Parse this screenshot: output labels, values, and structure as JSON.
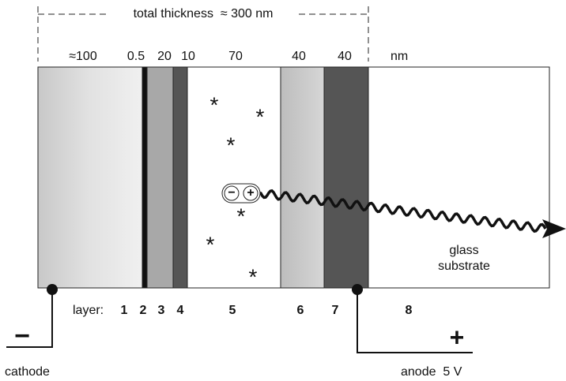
{
  "header": {
    "total_thickness": "total thickness  ≈ 300 nm"
  },
  "layers": [
    {
      "number": "1",
      "thickness": "≈100"
    },
    {
      "number": "2",
      "thickness": "0.5"
    },
    {
      "number": "3",
      "thickness": "20"
    },
    {
      "number": "4",
      "thickness": "10"
    },
    {
      "number": "5",
      "thickness": "70"
    },
    {
      "number": "6",
      "thickness": "40"
    },
    {
      "number": "7",
      "thickness": "40"
    },
    {
      "number": "8"
    }
  ],
  "thickness_unit": "nm",
  "layer_caption": "layer:",
  "substrate": {
    "line1": "glass",
    "line2": "substrate"
  },
  "exciton": {
    "minus": "−",
    "plus": "+"
  },
  "cathode": {
    "sign": "−",
    "label": "cathode"
  },
  "anode": {
    "sign": "+",
    "label": "anode  5 V"
  }
}
